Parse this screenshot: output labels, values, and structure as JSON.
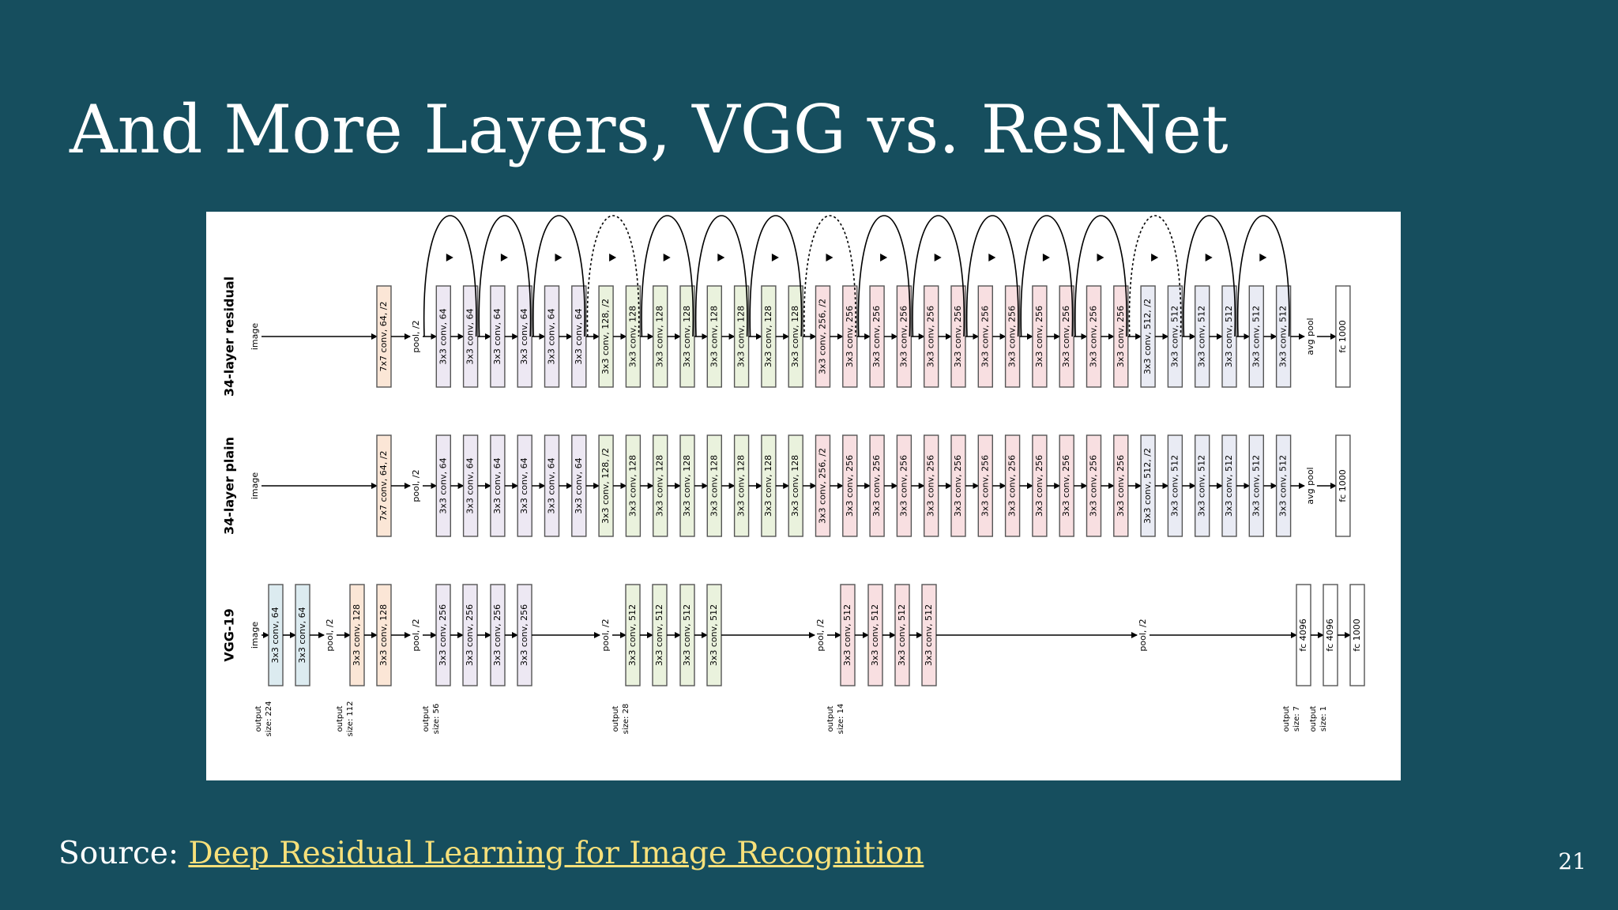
{
  "slide": {
    "title": "And More Layers, VGG vs. ResNet",
    "source_prefix": "Source: ",
    "source_link_text": "Deep Residual Learning for Image Recognition",
    "page_number": "21"
  },
  "colors": {
    "background": "#164e5e",
    "link": "#f7e07a",
    "stage64": "#ede8f3",
    "stage128": "#eaf2dd",
    "stage256": "#f8dfe1",
    "stage512": "#e9ebf4",
    "conv7": "#fbe6d6",
    "vgg64": "#dcebf0",
    "vgg128": "#fbe6d6"
  },
  "diagram": {
    "rows": [
      {
        "label": "34-layer residual",
        "input": "image",
        "layers": [
          {
            "text": "7x7 conv, 64, /2",
            "style": "conv7"
          },
          {
            "text": "pool, /2",
            "style": "pool"
          },
          {
            "text": "3x3 conv, 64",
            "style": "stage64"
          },
          {
            "text": "3x3 conv, 64",
            "style": "stage64"
          },
          {
            "text": "3x3 conv, 64",
            "style": "stage64"
          },
          {
            "text": "3x3 conv, 64",
            "style": "stage64"
          },
          {
            "text": "3x3 conv, 64",
            "style": "stage64"
          },
          {
            "text": "3x3 conv, 64",
            "style": "stage64"
          },
          {
            "text": "3x3 conv, 128, /2",
            "style": "stage128"
          },
          {
            "text": "3x3 conv, 128",
            "style": "stage128"
          },
          {
            "text": "3x3 conv, 128",
            "style": "stage128"
          },
          {
            "text": "3x3 conv, 128",
            "style": "stage128"
          },
          {
            "text": "3x3 conv, 128",
            "style": "stage128"
          },
          {
            "text": "3x3 conv, 128",
            "style": "stage128"
          },
          {
            "text": "3x3 conv, 128",
            "style": "stage128"
          },
          {
            "text": "3x3 conv, 128",
            "style": "stage128"
          },
          {
            "text": "3x3 conv, 256, /2",
            "style": "stage256"
          },
          {
            "text": "3x3 conv, 256",
            "style": "stage256"
          },
          {
            "text": "3x3 conv, 256",
            "style": "stage256"
          },
          {
            "text": "3x3 conv, 256",
            "style": "stage256"
          },
          {
            "text": "3x3 conv, 256",
            "style": "stage256"
          },
          {
            "text": "3x3 conv, 256",
            "style": "stage256"
          },
          {
            "text": "3x3 conv, 256",
            "style": "stage256"
          },
          {
            "text": "3x3 conv, 256",
            "style": "stage256"
          },
          {
            "text": "3x3 conv, 256",
            "style": "stage256"
          },
          {
            "text": "3x3 conv, 256",
            "style": "stage256"
          },
          {
            "text": "3x3 conv, 256",
            "style": "stage256"
          },
          {
            "text": "3x3 conv, 256",
            "style": "stage256"
          },
          {
            "text": "3x3 conv, 512, /2",
            "style": "stage512"
          },
          {
            "text": "3x3 conv, 512",
            "style": "stage512"
          },
          {
            "text": "3x3 conv, 512",
            "style": "stage512"
          },
          {
            "text": "3x3 conv, 512",
            "style": "stage512"
          },
          {
            "text": "3x3 conv, 512",
            "style": "stage512"
          },
          {
            "text": "3x3 conv, 512",
            "style": "stage512"
          },
          {
            "text": "avg pool",
            "style": "pool"
          },
          {
            "text": "fc 1000",
            "style": "fc"
          }
        ],
        "shortcuts": [
          {
            "from": 1,
            "to": 3,
            "dotted": false
          },
          {
            "from": 3,
            "to": 5,
            "dotted": false
          },
          {
            "from": 5,
            "to": 7,
            "dotted": false
          },
          {
            "from": 7,
            "to": 9,
            "dotted": true
          },
          {
            "from": 9,
            "to": 11,
            "dotted": false
          },
          {
            "from": 11,
            "to": 13,
            "dotted": false
          },
          {
            "from": 13,
            "to": 15,
            "dotted": false
          },
          {
            "from": 15,
            "to": 17,
            "dotted": true
          },
          {
            "from": 17,
            "to": 19,
            "dotted": false
          },
          {
            "from": 19,
            "to": 21,
            "dotted": false
          },
          {
            "from": 21,
            "to": 23,
            "dotted": false
          },
          {
            "from": 23,
            "to": 25,
            "dotted": false
          },
          {
            "from": 25,
            "to": 27,
            "dotted": false
          },
          {
            "from": 27,
            "to": 29,
            "dotted": true
          },
          {
            "from": 29,
            "to": 31,
            "dotted": false
          },
          {
            "from": 31,
            "to": 33,
            "dotted": false
          }
        ]
      },
      {
        "label": "34-layer plain",
        "input": "image",
        "layers": [
          {
            "text": "7x7 conv, 64, /2",
            "style": "conv7"
          },
          {
            "text": "pool, /2",
            "style": "pool"
          },
          {
            "text": "3x3 conv, 64",
            "style": "stage64"
          },
          {
            "text": "3x3 conv, 64",
            "style": "stage64"
          },
          {
            "text": "3x3 conv, 64",
            "style": "stage64"
          },
          {
            "text": "3x3 conv, 64",
            "style": "stage64"
          },
          {
            "text": "3x3 conv, 64",
            "style": "stage64"
          },
          {
            "text": "3x3 conv, 64",
            "style": "stage64"
          },
          {
            "text": "3x3 conv, 128, /2",
            "style": "stage128"
          },
          {
            "text": "3x3 conv, 128",
            "style": "stage128"
          },
          {
            "text": "3x3 conv, 128",
            "style": "stage128"
          },
          {
            "text": "3x3 conv, 128",
            "style": "stage128"
          },
          {
            "text": "3x3 conv, 128",
            "style": "stage128"
          },
          {
            "text": "3x3 conv, 128",
            "style": "stage128"
          },
          {
            "text": "3x3 conv, 128",
            "style": "stage128"
          },
          {
            "text": "3x3 conv, 128",
            "style": "stage128"
          },
          {
            "text": "3x3 conv, 256, /2",
            "style": "stage256"
          },
          {
            "text": "3x3 conv, 256",
            "style": "stage256"
          },
          {
            "text": "3x3 conv, 256",
            "style": "stage256"
          },
          {
            "text": "3x3 conv, 256",
            "style": "stage256"
          },
          {
            "text": "3x3 conv, 256",
            "style": "stage256"
          },
          {
            "text": "3x3 conv, 256",
            "style": "stage256"
          },
          {
            "text": "3x3 conv, 256",
            "style": "stage256"
          },
          {
            "text": "3x3 conv, 256",
            "style": "stage256"
          },
          {
            "text": "3x3 conv, 256",
            "style": "stage256"
          },
          {
            "text": "3x3 conv, 256",
            "style": "stage256"
          },
          {
            "text": "3x3 conv, 256",
            "style": "stage256"
          },
          {
            "text": "3x3 conv, 256",
            "style": "stage256"
          },
          {
            "text": "3x3 conv, 512, /2",
            "style": "stage512"
          },
          {
            "text": "3x3 conv, 512",
            "style": "stage512"
          },
          {
            "text": "3x3 conv, 512",
            "style": "stage512"
          },
          {
            "text": "3x3 conv, 512",
            "style": "stage512"
          },
          {
            "text": "3x3 conv, 512",
            "style": "stage512"
          },
          {
            "text": "3x3 conv, 512",
            "style": "stage512"
          },
          {
            "text": "avg pool",
            "style": "pool"
          },
          {
            "text": "fc 1000",
            "style": "fc"
          }
        ]
      },
      {
        "label": "VGG-19",
        "input": "image",
        "layers": [
          {
            "text": "3x3 conv, 64",
            "style": "vgg64"
          },
          {
            "text": "3x3 conv, 64",
            "style": "vgg64"
          },
          {
            "text": "pool, /2",
            "style": "pool"
          },
          {
            "text": "3x3 conv, 128",
            "style": "vgg128"
          },
          {
            "text": "3x3 conv, 128",
            "style": "vgg128"
          },
          {
            "text": "pool, /2",
            "style": "pool"
          },
          {
            "text": "3x3 conv, 256",
            "style": "stage64"
          },
          {
            "text": "3x3 conv, 256",
            "style": "stage64"
          },
          {
            "text": "3x3 conv, 256",
            "style": "stage64"
          },
          {
            "text": "3x3 conv, 256",
            "style": "stage64"
          },
          {
            "text": "pool, /2",
            "style": "pool"
          },
          {
            "text": "3x3 conv, 512",
            "style": "stage128"
          },
          {
            "text": "3x3 conv, 512",
            "style": "stage128"
          },
          {
            "text": "3x3 conv, 512",
            "style": "stage128"
          },
          {
            "text": "3x3 conv, 512",
            "style": "stage128"
          },
          {
            "text": "pool, /2",
            "style": "pool"
          },
          {
            "text": "3x3 conv, 512",
            "style": "stage256"
          },
          {
            "text": "3x3 conv, 512",
            "style": "stage256"
          },
          {
            "text": "3x3 conv, 512",
            "style": "stage256"
          },
          {
            "text": "3x3 conv, 512",
            "style": "stage256"
          },
          {
            "text": "pool, /2",
            "style": "pool"
          },
          {
            "text": "fc 4096",
            "style": "fc"
          },
          {
            "text": "fc 4096",
            "style": "fc"
          },
          {
            "text": "fc 1000",
            "style": "fc"
          }
        ],
        "output_sizes": [
          {
            "text": "output size: 224",
            "before_layer": 0
          },
          {
            "text": "output size: 112",
            "before_layer": 3
          },
          {
            "text": "output size: 56",
            "before_layer": 6
          },
          {
            "text": "output size: 28",
            "before_layer": 11
          },
          {
            "text": "output size: 14",
            "before_layer": 16
          },
          {
            "text": "output size: 7",
            "before_layer": 21
          },
          {
            "text": "output size: 1",
            "before_layer": 22
          }
        ]
      }
    ]
  }
}
